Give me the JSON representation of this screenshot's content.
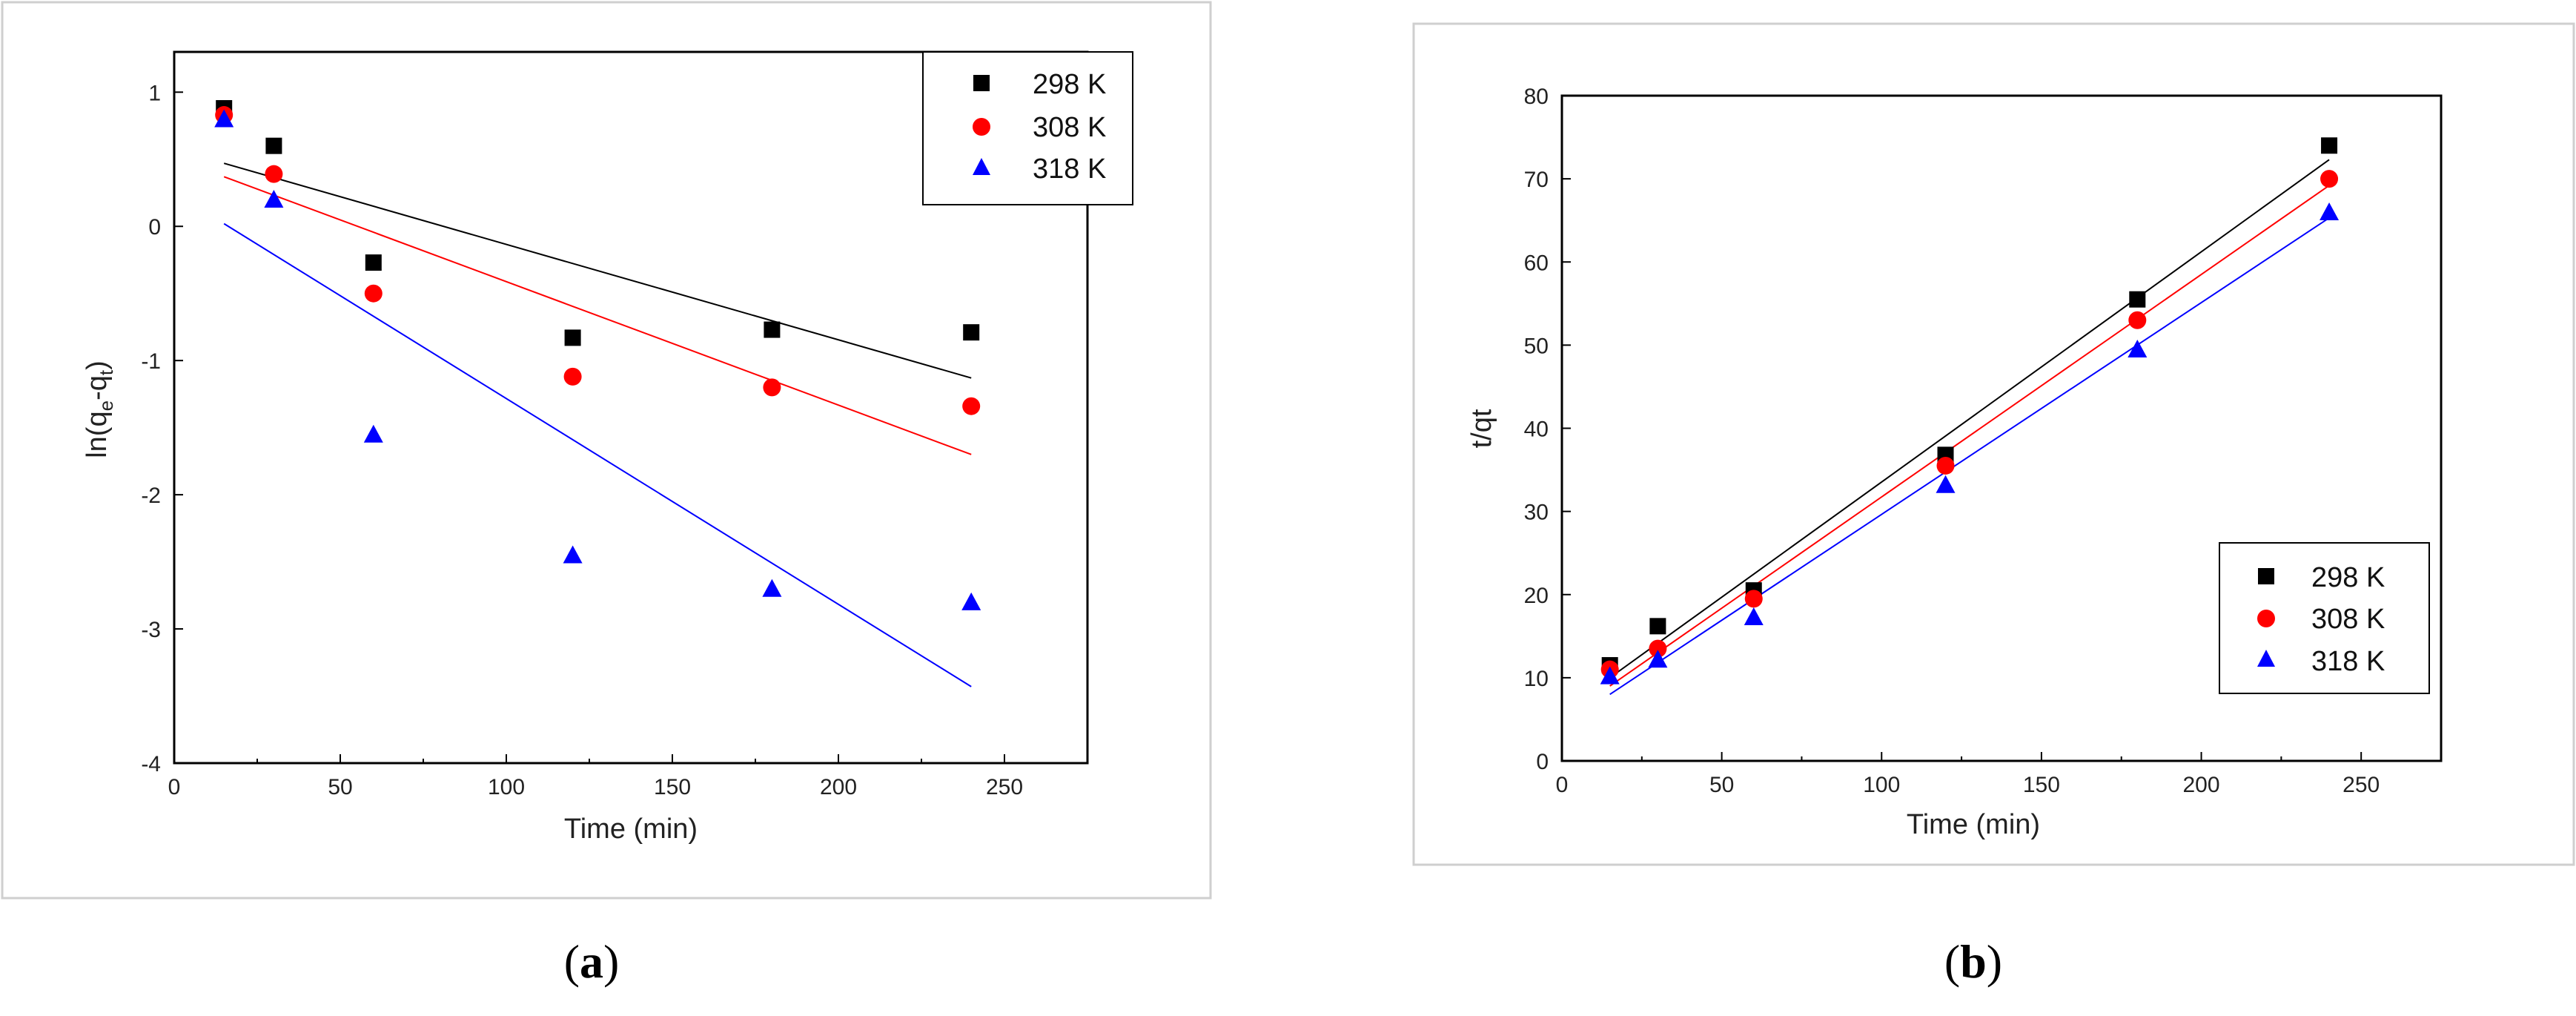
{
  "chart_data": [
    {
      "type": "scatter",
      "panel": "a",
      "title": "",
      "caption_open": "(",
      "caption_letter": "a",
      "caption_close": ")",
      "xlabel": "Time (min)",
      "ylabel": "ln(q",
      "ylabel_sub1": "e",
      "ylabel_mid": "-q",
      "ylabel_sub2": "t",
      "ylabel_end": ")",
      "xlim": [
        0,
        275
      ],
      "ylim": [
        -4,
        1.3
      ],
      "xticks": [
        "0",
        "50",
        "100",
        "150",
        "200",
        "250"
      ],
      "yticks": [
        "1",
        "0",
        "-1",
        "-2",
        "-3",
        "-4"
      ],
      "grid": false,
      "legend_position": "top-right",
      "x": [
        15,
        30,
        60,
        120,
        180,
        240
      ],
      "series": [
        {
          "name": "298 K",
          "marker": "square",
          "color": "#000000",
          "values": [
            0.88,
            0.6,
            -0.27,
            -0.83,
            -0.77,
            -0.79
          ],
          "fit": [
            0.47,
            -1.13
          ]
        },
        {
          "name": "308 K",
          "marker": "circle",
          "color": "#ff0000",
          "values": [
            0.83,
            0.39,
            -0.5,
            -1.12,
            -1.2,
            -1.34
          ],
          "fit": [
            0.37,
            -1.7
          ]
        },
        {
          "name": "318 K",
          "marker": "triangle",
          "color": "#0000ff",
          "values": [
            0.8,
            0.2,
            -1.55,
            -2.45,
            -2.7,
            -2.8
          ],
          "fit": [
            0.02,
            -3.43
          ]
        }
      ]
    },
    {
      "type": "scatter",
      "panel": "b",
      "title": "",
      "caption_open": "(",
      "caption_letter": "b",
      "caption_close": ")",
      "xlabel": "Time (min)",
      "ylabel": "t/qt",
      "xlim": [
        0,
        275
      ],
      "ylim": [
        0,
        80
      ],
      "xticks": [
        "0",
        "50",
        "100",
        "150",
        "200",
        "250"
      ],
      "yticks": [
        "0",
        "10",
        "20",
        "30",
        "40",
        "50",
        "60",
        "70",
        "80"
      ],
      "grid": false,
      "legend_position": "bottom-right",
      "x": [
        15,
        30,
        60,
        120,
        180,
        240
      ],
      "series": [
        {
          "name": "298 K",
          "marker": "square",
          "color": "#000000",
          "values": [
            11.5,
            16.2,
            20.5,
            36.8,
            55.5,
            74
          ],
          "fit": [
            10,
            72.3
          ]
        },
        {
          "name": "308 K",
          "marker": "circle",
          "color": "#ff0000",
          "values": [
            11.0,
            13.5,
            19.5,
            35.5,
            53,
            70
          ],
          "fit": [
            9,
            69.2
          ]
        },
        {
          "name": "318 K",
          "marker": "triangle",
          "color": "#0000ff",
          "values": [
            10.2,
            12.2,
            17.3,
            33.2,
            49.5,
            66
          ],
          "fit": [
            8,
            65.3
          ]
        }
      ]
    }
  ]
}
